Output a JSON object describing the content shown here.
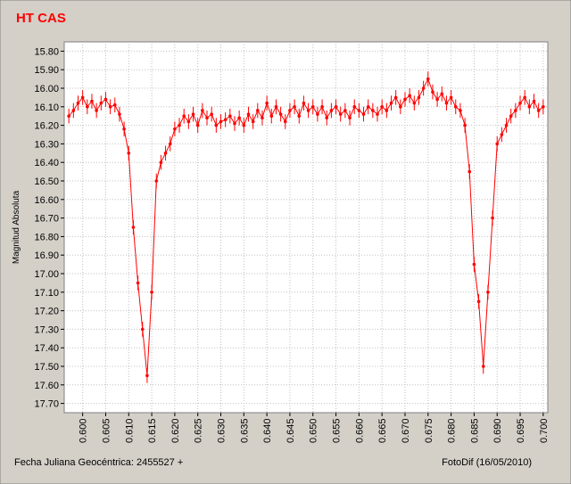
{
  "chart_data": {
    "type": "scatter",
    "title": "HT CAS",
    "y_label": "Magnitud Absoluta",
    "x_label": "Fecha Juliana Geocéntrica: 2455527 +",
    "credit": "FotoDif (16/05/2010)",
    "color": "#ff0000",
    "yerr": 0.04,
    "y_inverted": true,
    "grid": true,
    "xlim": [
      0.596,
      0.701
    ],
    "ylim": [
      15.75,
      17.75
    ],
    "xticks": [
      {
        "value": 0.6,
        "label": "0.600"
      },
      {
        "value": 0.605,
        "label": "0.605"
      },
      {
        "value": 0.61,
        "label": "0.610"
      },
      {
        "value": 0.615,
        "label": "0.615"
      },
      {
        "value": 0.62,
        "label": "0.620"
      },
      {
        "value": 0.625,
        "label": "0.625"
      },
      {
        "value": 0.63,
        "label": "0.630"
      },
      {
        "value": 0.635,
        "label": "0.635"
      },
      {
        "value": 0.64,
        "label": "0.640"
      },
      {
        "value": 0.645,
        "label": "0.645"
      },
      {
        "value": 0.65,
        "label": "0.650"
      },
      {
        "value": 0.655,
        "label": "0.655"
      },
      {
        "value": 0.66,
        "label": "0.660"
      },
      {
        "value": 0.665,
        "label": "0.665"
      },
      {
        "value": 0.67,
        "label": "0.670"
      },
      {
        "value": 0.675,
        "label": "0.675"
      },
      {
        "value": 0.68,
        "label": "0.680"
      },
      {
        "value": 0.685,
        "label": "0.685"
      },
      {
        "value": 0.69,
        "label": "0.690"
      },
      {
        "value": 0.695,
        "label": "0.695"
      },
      {
        "value": 0.7,
        "label": "0.700"
      }
    ],
    "yticks": [
      {
        "value": 15.8,
        "label": "15.80"
      },
      {
        "value": 15.9,
        "label": "15.90"
      },
      {
        "value": 16.0,
        "label": "16.00"
      },
      {
        "value": 16.1,
        "label": "16.10"
      },
      {
        "value": 16.2,
        "label": "16.20"
      },
      {
        "value": 16.3,
        "label": "16.30"
      },
      {
        "value": 16.4,
        "label": "16.40"
      },
      {
        "value": 16.5,
        "label": "16.50"
      },
      {
        "value": 16.6,
        "label": "16.60"
      },
      {
        "value": 16.7,
        "label": "16.70"
      },
      {
        "value": 16.8,
        "label": "16.80"
      },
      {
        "value": 16.9,
        "label": "16.90"
      },
      {
        "value": 17.0,
        "label": "17.00"
      },
      {
        "value": 17.1,
        "label": "17.10"
      },
      {
        "value": 17.2,
        "label": "17.20"
      },
      {
        "value": 17.3,
        "label": "17.30"
      },
      {
        "value": 17.4,
        "label": "17.40"
      },
      {
        "value": 17.5,
        "label": "17.50"
      },
      {
        "value": 17.6,
        "label": "17.60"
      },
      {
        "value": 17.7,
        "label": "17.70"
      }
    ],
    "x": [
      0.597,
      0.598,
      0.599,
      0.6,
      0.601,
      0.602,
      0.603,
      0.604,
      0.605,
      0.606,
      0.607,
      0.608,
      0.609,
      0.61,
      0.611,
      0.612,
      0.613,
      0.614,
      0.615,
      0.616,
      0.617,
      0.618,
      0.619,
      0.62,
      0.621,
      0.622,
      0.623,
      0.624,
      0.625,
      0.626,
      0.627,
      0.628,
      0.629,
      0.63,
      0.631,
      0.632,
      0.633,
      0.634,
      0.635,
      0.636,
      0.637,
      0.638,
      0.639,
      0.64,
      0.641,
      0.642,
      0.643,
      0.644,
      0.645,
      0.646,
      0.647,
      0.648,
      0.649,
      0.65,
      0.651,
      0.652,
      0.653,
      0.654,
      0.655,
      0.656,
      0.657,
      0.658,
      0.659,
      0.66,
      0.661,
      0.662,
      0.663,
      0.664,
      0.665,
      0.666,
      0.667,
      0.668,
      0.669,
      0.67,
      0.671,
      0.672,
      0.673,
      0.674,
      0.675,
      0.676,
      0.677,
      0.678,
      0.679,
      0.68,
      0.681,
      0.682,
      0.683,
      0.684,
      0.685,
      0.686,
      0.687,
      0.688,
      0.689,
      0.69,
      0.691,
      0.692,
      0.693,
      0.694,
      0.695,
      0.696,
      0.697,
      0.698,
      0.699,
      0.7
    ],
    "values": [
      16.15,
      16.12,
      16.08,
      16.05,
      16.1,
      16.07,
      16.12,
      16.08,
      16.06,
      16.1,
      16.09,
      16.14,
      16.22,
      16.35,
      16.75,
      17.05,
      17.3,
      17.55,
      17.1,
      16.5,
      16.4,
      16.35,
      16.3,
      16.22,
      16.2,
      16.15,
      16.18,
      16.14,
      16.2,
      16.12,
      16.16,
      16.14,
      16.2,
      16.18,
      16.17,
      16.15,
      16.19,
      16.16,
      16.2,
      16.14,
      16.18,
      16.12,
      16.16,
      16.08,
      16.15,
      16.1,
      16.14,
      16.18,
      16.12,
      16.1,
      16.15,
      16.08,
      16.12,
      16.1,
      16.14,
      16.1,
      16.16,
      16.12,
      16.1,
      16.14,
      16.12,
      16.16,
      16.1,
      16.12,
      16.14,
      16.1,
      16.12,
      16.14,
      16.1,
      16.12,
      16.08,
      16.05,
      16.1,
      16.06,
      16.04,
      16.08,
      16.05,
      16.0,
      15.95,
      16.02,
      16.06,
      16.03,
      16.08,
      16.05,
      16.1,
      16.12,
      16.2,
      16.45,
      16.95,
      17.15,
      17.5,
      17.1,
      16.7,
      16.3,
      16.25,
      16.2,
      16.15,
      16.12,
      16.08,
      16.05,
      16.1,
      16.07,
      16.12,
      16.1
    ]
  }
}
